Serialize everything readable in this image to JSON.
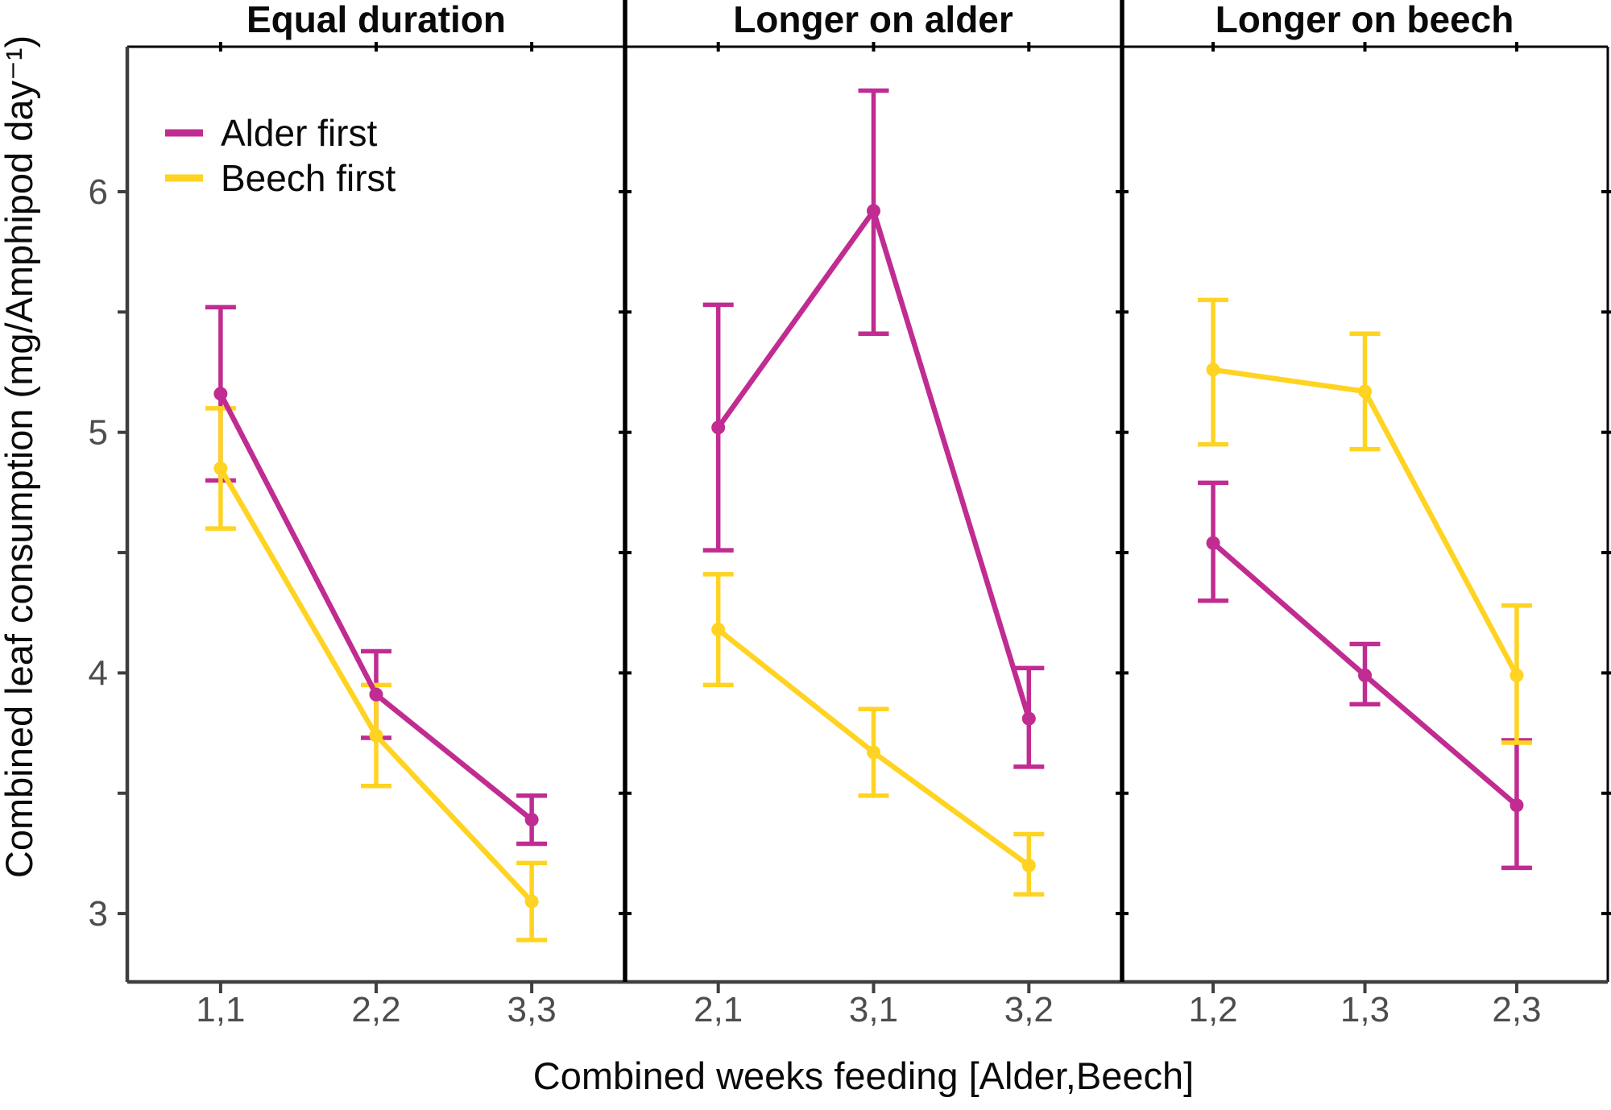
{
  "chart_data": {
    "type": "line",
    "title": "",
    "xlabel": "Combined weeks feeding [Alder,Beech]",
    "ylabel": "Combined leaf consumption (mg/Amphipod day⁻¹)",
    "ylim": [
      2.72,
      6.6
    ],
    "yticks_major": [
      3,
      4,
      5,
      6
    ],
    "yticks_minor": [
      3.5,
      4.5,
      5.5
    ],
    "grid": "off",
    "legend_position": "top-left-inside-first-panel",
    "legend": [
      {
        "name": "Alder first",
        "color": "#C02C91"
      },
      {
        "name": "Beech first",
        "color": "#FFD321"
      }
    ],
    "panels": [
      {
        "title": "Equal duration",
        "categories": [
          "1,1",
          "2,2",
          "3,3"
        ],
        "series": [
          {
            "name": "Alder first",
            "values": [
              5.16,
              3.91,
              3.39
            ],
            "err_low": [
              4.8,
              3.73,
              3.29
            ],
            "err_high": [
              5.52,
              4.09,
              3.49
            ]
          },
          {
            "name": "Beech first",
            "values": [
              4.85,
              3.74,
              3.05
            ],
            "err_low": [
              4.6,
              3.53,
              2.89
            ],
            "err_high": [
              5.1,
              3.95,
              3.21
            ]
          }
        ]
      },
      {
        "title": "Longer on alder",
        "categories": [
          "2,1",
          "3,1",
          "3,2"
        ],
        "series": [
          {
            "name": "Alder first",
            "values": [
              5.02,
              5.92,
              3.81
            ],
            "err_low": [
              4.51,
              5.41,
              3.61
            ],
            "err_high": [
              5.53,
              6.42,
              4.02
            ]
          },
          {
            "name": "Beech first",
            "values": [
              4.18,
              3.67,
              3.2
            ],
            "err_low": [
              3.95,
              3.49,
              3.08
            ],
            "err_high": [
              4.41,
              3.85,
              3.33
            ]
          }
        ]
      },
      {
        "title": "Longer on beech",
        "categories": [
          "1,2",
          "1,3",
          "2,3"
        ],
        "series": [
          {
            "name": "Alder first",
            "values": [
              4.54,
              3.99,
              3.45
            ],
            "err_low": [
              4.3,
              3.87,
              3.19
            ],
            "err_high": [
              4.79,
              4.12,
              3.72
            ]
          },
          {
            "name": "Beech first",
            "values": [
              5.26,
              5.17,
              3.99
            ],
            "err_low": [
              4.95,
              4.93,
              3.71
            ],
            "err_high": [
              5.55,
              5.41,
              4.28
            ]
          }
        ]
      }
    ],
    "colors": {
      "alder_first": "#C02C91",
      "beech_first": "#FFD321",
      "axis_line": "#3f3f3f",
      "panel_divider": "#000000",
      "tick_label": "#4d4d4d",
      "text": "#0a0a0a"
    }
  }
}
